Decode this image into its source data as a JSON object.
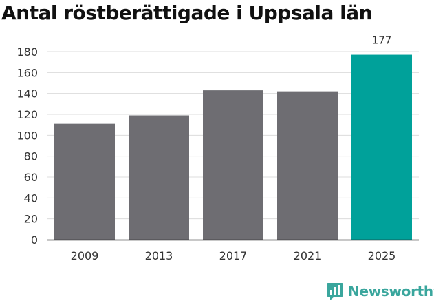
{
  "title": "Antal röstberättigade i Uppsala län",
  "brand": {
    "name": "Newsworthy",
    "icon": "newsworthy-logo-icon",
    "color": "#3aa69d"
  },
  "chart_data": {
    "type": "bar",
    "title": "Antal röstberättigade i Uppsala län",
    "xlabel": "",
    "ylabel": "",
    "categories": [
      "2009",
      "2013",
      "2017",
      "2021",
      "2025"
    ],
    "values": [
      111,
      119,
      143,
      142,
      177
    ],
    "bar_colors": [
      "#6e6d72",
      "#6e6d72",
      "#6e6d72",
      "#6e6d72",
      "#00a19a"
    ],
    "data_labels": [
      "",
      "",
      "",
      "",
      "177"
    ],
    "ylim": [
      0,
      180
    ],
    "yticks": [
      0,
      20,
      40,
      60,
      80,
      100,
      120,
      140,
      160,
      180
    ],
    "grid": true,
    "legend": "none"
  }
}
